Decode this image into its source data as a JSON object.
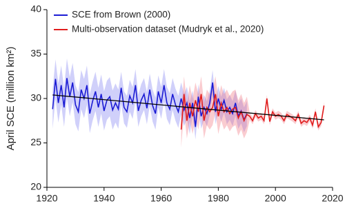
{
  "chart_data": {
    "type": "line",
    "ylabel": "April SCE (million km²)",
    "xlim": [
      1920,
      2020
    ],
    "xticks": [
      1920,
      1940,
      1960,
      1980,
      2000,
      2020
    ],
    "ylim": [
      20,
      40
    ],
    "yticks": [
      20,
      25,
      30,
      35,
      40
    ],
    "legend": "upper-left",
    "series": [
      {
        "name": "SCE from Brown (2000)",
        "color": "#1a1ad4",
        "band_color": "rgba(120,120,240,0.35)",
        "x": [
          1922,
          1923,
          1924,
          1925,
          1926,
          1927,
          1928,
          1929,
          1930,
          1931,
          1932,
          1933,
          1934,
          1935,
          1936,
          1937,
          1938,
          1939,
          1940,
          1941,
          1942,
          1943,
          1944,
          1945,
          1946,
          1947,
          1948,
          1949,
          1950,
          1951,
          1952,
          1953,
          1954,
          1955,
          1956,
          1957,
          1958,
          1959,
          1960,
          1961,
          1962,
          1963,
          1964,
          1965,
          1966,
          1967,
          1968,
          1969,
          1970,
          1971,
          1972,
          1973,
          1974,
          1975,
          1976,
          1977,
          1978,
          1979,
          1980,
          1981,
          1982,
          1983,
          1984,
          1985,
          1986,
          1987,
          1988,
          1989,
          1990
        ],
        "values": [
          28.8,
          32.2,
          29.5,
          31.5,
          29.0,
          32.3,
          30.2,
          31.8,
          29.3,
          28.5,
          31.0,
          30.0,
          31.5,
          28.3,
          29.7,
          30.8,
          29.0,
          30.5,
          28.6,
          29.8,
          30.2,
          28.7,
          29.5,
          28.8,
          31.2,
          29.0,
          28.5,
          30.3,
          29.5,
          31.5,
          28.6,
          29.8,
          30.5,
          28.9,
          31.0,
          29.2,
          28.3,
          30.8,
          29.5,
          31.5,
          29.5,
          28.8,
          30.5,
          29.3,
          28.5,
          30.0,
          28.7,
          29.5,
          27.8,
          29.5,
          26.8,
          30.2,
          28.0,
          29.0,
          28.3,
          29.5,
          31.8,
          28.5,
          30.0,
          28.8,
          29.8,
          28.5,
          29.0,
          28.3,
          29.5,
          28.0,
          28.6,
          27.6,
          28.3
        ],
        "error": [
          2.2,
          2.2,
          2.2,
          2.2,
          2.2,
          2.2,
          2.2,
          2.2,
          2.2,
          2.2,
          2.2,
          2.2,
          2.2,
          2.2,
          2.2,
          2.2,
          2.2,
          2.2,
          2.2,
          2.2,
          2.2,
          2.2,
          2.2,
          2.2,
          1.8,
          1.8,
          1.8,
          1.8,
          1.8,
          1.8,
          1.8,
          1.8,
          1.8,
          1.8,
          1.8,
          1.8,
          1.8,
          1.8,
          1.8,
          1.8,
          1.8,
          1.8,
          1.8,
          1.8,
          1.8,
          1.8,
          1.8,
          1.8,
          1.8,
          1.4,
          1.4,
          1.4,
          1.4,
          1.4,
          1.4,
          1.4,
          1.4,
          1.4,
          1.4,
          1.4,
          1.4,
          1.4,
          1.4,
          1.4,
          1.4,
          1.4,
          1.4,
          1.4,
          1.4
        ]
      },
      {
        "name": "Multi-observation dataset (Mudryk et al., 2020)",
        "color": "#e01c1c",
        "band_color": "rgba(240,110,120,0.35)",
        "x": [
          1967,
          1968,
          1969,
          1970,
          1971,
          1972,
          1973,
          1974,
          1975,
          1976,
          1977,
          1978,
          1979,
          1980,
          1981,
          1982,
          1983,
          1984,
          1985,
          1986,
          1987,
          1988,
          1989,
          1990,
          1991,
          1992,
          1993,
          1994,
          1995,
          1996,
          1997,
          1998,
          1999,
          2000,
          2001,
          2002,
          2003,
          2004,
          2005,
          2006,
          2007,
          2008,
          2009,
          2010,
          2011,
          2012,
          2013,
          2014,
          2015,
          2016,
          2017
        ],
        "values": [
          26.5,
          30.5,
          27.5,
          29.5,
          28.0,
          29.8,
          28.5,
          30.5,
          27.5,
          29.0,
          28.5,
          29.0,
          30.5,
          28.0,
          29.5,
          28.5,
          29.0,
          28.3,
          28.8,
          29.0,
          27.8,
          28.5,
          27.5,
          28.2,
          28.0,
          27.5,
          28.3,
          27.8,
          28.0,
          27.5,
          30.0,
          27.4,
          28.5,
          28.0,
          28.2,
          28.0,
          27.5,
          28.2,
          28.0,
          27.8,
          27.5,
          28.2,
          27.2,
          27.5,
          27.3,
          27.8,
          27.0,
          28.5,
          26.8,
          27.3,
          29.2
        ],
        "error": [
          2.0,
          2.0,
          2.0,
          2.0,
          2.0,
          2.0,
          2.0,
          2.0,
          2.0,
          2.0,
          2.0,
          2.0,
          2.0,
          2.0,
          2.0,
          2.0,
          2.0,
          2.0,
          2.0,
          2.0,
          2.0,
          2.0,
          2.0,
          2.0,
          0.4,
          0.4,
          0.4,
          0.4,
          0.4,
          0.4,
          0.4,
          0.4,
          0.4,
          0.4,
          0.4,
          0.4,
          0.4,
          0.4,
          0.4,
          0.4,
          0.4,
          0.4,
          0.4,
          0.4,
          0.4,
          0.4,
          0.4,
          0.4,
          0.4,
          0.4,
          0.4
        ]
      }
    ],
    "trend": {
      "color": "#000000",
      "x": [
        1922,
        2017
      ],
      "values": [
        30.4,
        27.6
      ]
    }
  }
}
